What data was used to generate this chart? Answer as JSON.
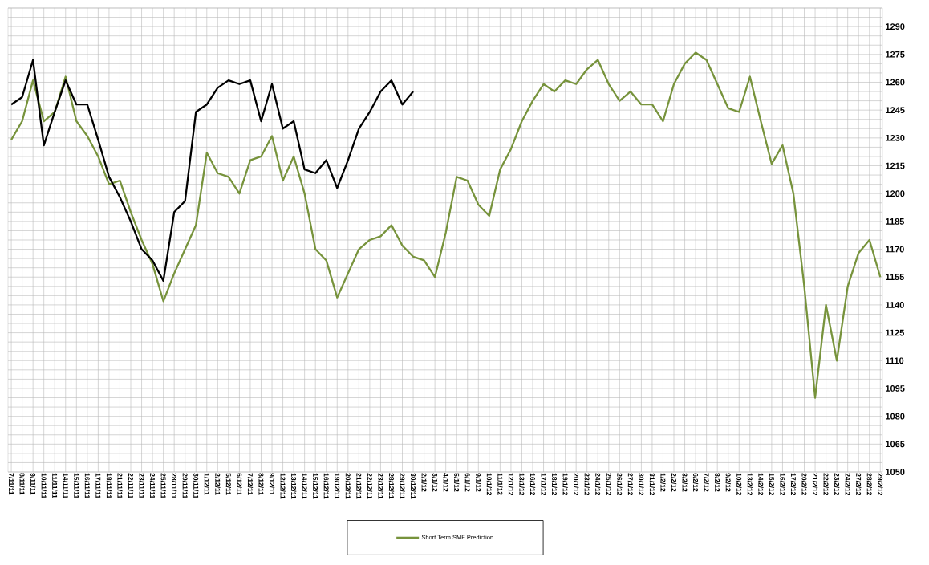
{
  "chart_data": {
    "type": "line",
    "categories": [
      "7/11/11",
      "8/11/11",
      "9/11/11",
      "10/11/11",
      "11/11/11",
      "14/11/11",
      "15/11/11",
      "16/11/11",
      "17/11/11",
      "18/11/11",
      "21/11/11",
      "22/11/11",
      "23/11/11",
      "24/11/11",
      "25/11/11",
      "28/11/11",
      "29/11/11",
      "30/11/11",
      "1/12/11",
      "2/12/11",
      "5/12/11",
      "6/12/11",
      "7/12/11",
      "8/12/11",
      "9/12/11",
      "12/12/11",
      "13/12/11",
      "14/12/11",
      "15/12/11",
      "16/12/11",
      "19/12/11",
      "20/12/11",
      "21/12/11",
      "22/12/11",
      "23/12/11",
      "28/12/11",
      "29/12/11",
      "30/12/11",
      "2/1/12",
      "3/1/12",
      "4/1/12",
      "5/1/12",
      "6/1/12",
      "9/1/12",
      "10/1/12",
      "11/1/12",
      "12/1/12",
      "13/1/12",
      "16/1/12",
      "17/1/12",
      "18/1/12",
      "19/1/12",
      "20/1/12",
      "23/1/12",
      "24/1/12",
      "25/1/12",
      "26/1/12",
      "27/1/12",
      "30/1/12",
      "31/1/12",
      "1/2/12",
      "2/2/12",
      "3/2/12",
      "6/2/12",
      "7/2/12",
      "8/2/12",
      "9/2/12",
      "10/2/12",
      "13/2/12",
      "14/2/12",
      "15/2/12",
      "16/2/12",
      "17/2/12",
      "20/2/12",
      "21/2/12",
      "22/2/12",
      "23/2/12",
      "24/2/12",
      "27/2/12",
      "28/2/12",
      "29/2/12"
    ],
    "series": [
      {
        "name": "Short Term SMF Prediction",
        "color": "#77933c",
        "values": [
          1229,
          1239,
          1261,
          1239,
          1244,
          1263,
          1239,
          1231,
          1220,
          1205,
          1207,
          1190,
          1175,
          1162,
          1142,
          1157,
          1170,
          1183,
          1222,
          1211,
          1209,
          1200,
          1218,
          1220,
          1231,
          1207,
          1220,
          1200,
          1170,
          1164,
          1144,
          1157,
          1170,
          1175,
          1177,
          1183,
          1172,
          1166,
          1164,
          1155,
          1179,
          1209,
          1207,
          1194,
          1188,
          1213,
          1224,
          1239,
          1250,
          1259,
          1255,
          1261,
          1259,
          1267,
          1272,
          1259,
          1250,
          1255,
          1248,
          1248,
          1239,
          1259,
          1270,
          1276,
          1272,
          1259,
          1246,
          1244,
          1263,
          1239,
          1216,
          1226,
          1200,
          1150,
          1090,
          1140,
          1110,
          1150,
          1168,
          1175,
          1155
        ]
      },
      {
        "color": "#000000",
        "values": [
          1248,
          1252,
          1272,
          1226,
          1244,
          1261,
          1248,
          1248,
          1229,
          1209,
          1198,
          1185,
          1170,
          1164,
          1153,
          1190,
          1196,
          1244,
          1248,
          1257,
          1261,
          1259,
          1261,
          1239,
          1259,
          1235,
          1239,
          1213,
          1211,
          1218,
          1203,
          1218,
          1235,
          1244,
          1255,
          1261,
          1248,
          1255,
          null,
          null,
          null,
          null,
          null,
          null,
          null,
          null,
          null,
          null,
          null,
          null,
          null,
          null,
          null,
          null,
          null,
          null,
          null,
          null,
          null,
          null,
          null,
          null,
          null,
          null,
          null,
          null,
          null,
          null,
          null,
          null,
          null,
          null,
          null,
          null,
          null,
          null,
          null,
          null,
          null,
          null,
          null
        ]
      }
    ],
    "ylim": [
      1050,
      1300
    ],
    "yticks": [
      1050,
      {
        "value": 1055,
        "label": null
      },
      {
        "value": 1060,
        "label": null
      },
      1065,
      {
        "value": 1070,
        "label": null
      },
      {
        "value": 1075,
        "label": null
      },
      1080,
      {
        "value": 1085,
        "label": null
      },
      {
        "value": 1090,
        "label": null
      },
      1095,
      {
        "value": 1100,
        "label": null
      },
      {
        "value": 1105,
        "label": null
      },
      1110,
      {
        "value": 1115,
        "label": null
      },
      {
        "value": 1120,
        "label": null
      },
      1125,
      {
        "value": 1130,
        "label": null
      },
      {
        "value": 1135,
        "label": null
      },
      1140,
      {
        "value": 1145,
        "label": null
      },
      {
        "value": 1150,
        "label": null
      },
      1155,
      {
        "value": 1160,
        "label": null
      },
      {
        "value": 1165,
        "label": null
      },
      1170,
      {
        "value": 1175,
        "label": null
      },
      {
        "value": 1180,
        "label": null
      },
      1185,
      {
        "value": 1190,
        "label": null
      },
      {
        "value": 1195,
        "label": null
      },
      1200,
      {
        "value": 1205,
        "label": null
      },
      {
        "value": 1210,
        "label": null
      },
      1215,
      {
        "value": 1220,
        "label": null
      },
      {
        "value": 1225,
        "label": null
      },
      1230,
      {
        "value": 1235,
        "label": null
      },
      {
        "value": 1240,
        "label": null
      },
      1245,
      {
        "value": 1250,
        "label": null
      },
      {
        "value": 1255,
        "label": null
      },
      1260,
      {
        "value": 1265,
        "label": null
      },
      {
        "value": 1270,
        "label": null
      },
      1275,
      {
        "value": 1280,
        "label": null
      },
      {
        "value": 1285,
        "label": null
      },
      1290,
      {
        "value": 1295,
        "label": null
      },
      {
        "value": 1300,
        "label": null
      }
    ],
    "grid": true,
    "legend": "bottom",
    "marker": "none",
    "line_style": "solid"
  }
}
